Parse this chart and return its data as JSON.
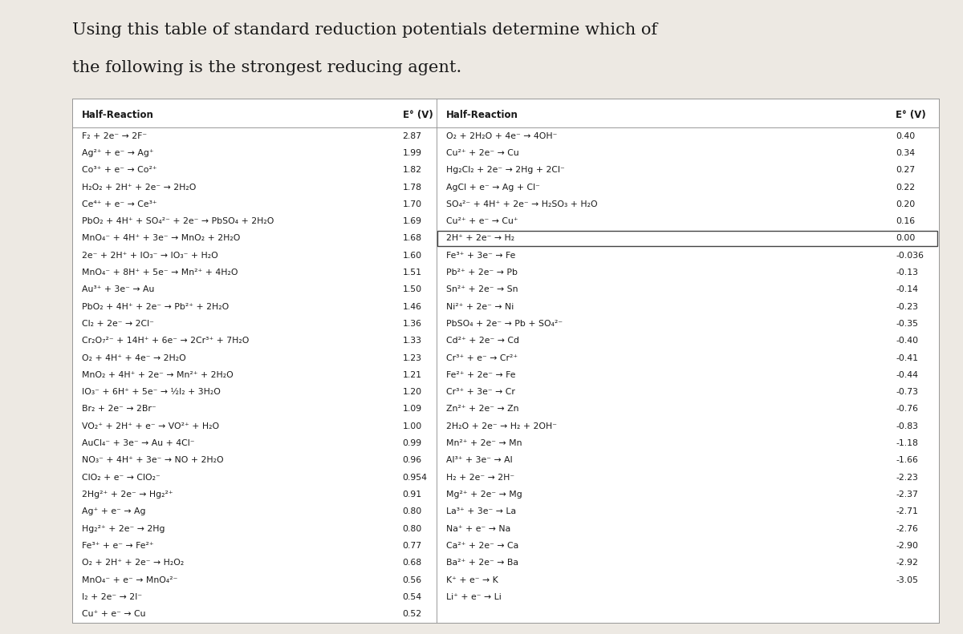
{
  "title_line1": "Using this table of standard reduction potentials determine which of",
  "title_line2": "the following is the strongest reducing agent.",
  "col1_header": "Half-Reaction",
  "col2_header": "E° (V)",
  "col3_header": "Half-Reaction",
  "col4_header": "E° (V)",
  "left_reactions": [
    "F₂ + 2e⁻ → 2F⁻",
    "Ag²⁺ + e⁻ → Ag⁺",
    "Co³⁺ + e⁻ → Co²⁺",
    "H₂O₂ + 2H⁺ + 2e⁻ → 2H₂O",
    "Ce⁴⁺ + e⁻ → Ce³⁺",
    "PbO₂ + 4H⁺ + SO₄²⁻ + 2e⁻ → PbSO₄ + 2H₂O",
    "MnO₄⁻ + 4H⁺ + 3e⁻ → MnO₂ + 2H₂O",
    "2e⁻ + 2H⁺ + IO₃⁻ → IO₃⁻ + H₂O",
    "MnO₄⁻ + 8H⁺ + 5e⁻ → Mn²⁺ + 4H₂O",
    "Au³⁺ + 3e⁻ → Au",
    "PbO₂ + 4H⁺ + 2e⁻ → Pb²⁺ + 2H₂O",
    "Cl₂ + 2e⁻ → 2Cl⁻",
    "Cr₂O₇²⁻ + 14H⁺ + 6e⁻ → 2Cr³⁺ + 7H₂O",
    "O₂ + 4H⁺ + 4e⁻ → 2H₂O",
    "MnO₂ + 4H⁺ + 2e⁻ → Mn²⁺ + 2H₂O",
    "IO₃⁻ + 6H⁺ + 5e⁻ → ½I₂ + 3H₂O",
    "Br₂ + 2e⁻ → 2Br⁻",
    "VO₂⁺ + 2H⁺ + e⁻ → VO²⁺ + H₂O",
    "AuCl₄⁻ + 3e⁻ → Au + 4Cl⁻",
    "NO₃⁻ + 4H⁺ + 3e⁻ → NO + 2H₂O",
    "ClO₂ + e⁻ → ClO₂⁻",
    "2Hg²⁺ + 2e⁻ → Hg₂²⁺",
    "Ag⁺ + e⁻ → Ag",
    "Hg₂²⁺ + 2e⁻ → 2Hg",
    "Fe³⁺ + e⁻ → Fe²⁺",
    "O₂ + 2H⁺ + 2e⁻ → H₂O₂",
    "MnO₄⁻ + e⁻ → MnO₄²⁻",
    "I₂ + 2e⁻ → 2I⁻",
    "Cu⁺ + e⁻ → Cu"
  ],
  "left_potentials": [
    "2.87",
    "1.99",
    "1.82",
    "1.78",
    "1.70",
    "1.69",
    "1.68",
    "1.60",
    "1.51",
    "1.50",
    "1.46",
    "1.36",
    "1.33",
    "1.23",
    "1.21",
    "1.20",
    "1.09",
    "1.00",
    "0.99",
    "0.96",
    "0.954",
    "0.91",
    "0.80",
    "0.80",
    "0.77",
    "0.68",
    "0.56",
    "0.54",
    "0.52"
  ],
  "right_reactions": [
    "O₂ + 2H₂O + 4e⁻ → 4OH⁻",
    "Cu²⁺ + 2e⁻ → Cu",
    "Hg₂Cl₂ + 2e⁻ → 2Hg + 2Cl⁻",
    "AgCl + e⁻ → Ag + Cl⁻",
    "SO₄²⁻ + 4H⁺ + 2e⁻ → H₂SO₃ + H₂O",
    "Cu²⁺ + e⁻ → Cu⁺",
    "2H⁺ + 2e⁻ → H₂",
    "Fe³⁺ + 3e⁻ → Fe",
    "Pb²⁺ + 2e⁻ → Pb",
    "Sn²⁺ + 2e⁻ → Sn",
    "Ni²⁺ + 2e⁻ → Ni",
    "PbSO₄ + 2e⁻ → Pb + SO₄²⁻",
    "Cd²⁺ + 2e⁻ → Cd",
    "Cr³⁺ + e⁻ → Cr²⁺",
    "Fe²⁺ + 2e⁻ → Fe",
    "Cr³⁺ + 3e⁻ → Cr",
    "Zn²⁺ + 2e⁻ → Zn",
    "2H₂O + 2e⁻ → H₂ + 2OH⁻",
    "Mn²⁺ + 2e⁻ → Mn",
    "Al³⁺ + 3e⁻ → Al",
    "H₂ + 2e⁻ → 2H⁻",
    "Mg²⁺ + 2e⁻ → Mg",
    "La³⁺ + 3e⁻ → La",
    "Na⁺ + e⁻ → Na",
    "Ca²⁺ + 2e⁻ → Ca",
    "Ba²⁺ + 2e⁻ → Ba",
    "K⁺ + e⁻ → K",
    "Li⁺ + e⁻ → Li"
  ],
  "right_potentials": [
    "0.40",
    "0.34",
    "0.27",
    "0.22",
    "0.20",
    "0.16",
    "0.00",
    "-0.036",
    "-0.13",
    "-0.14",
    "-0.23",
    "-0.35",
    "-0.40",
    "-0.41",
    "-0.44",
    "-0.73",
    "-0.76",
    "-0.83",
    "-1.18",
    "-1.66",
    "-2.23",
    "-2.37",
    "-2.71",
    "-2.76",
    "-2.90",
    "-2.92",
    "-3.05",
    ""
  ],
  "bg_color": "#ede9e3",
  "text_color": "#1a1a1a",
  "header_color": "#1a1a1a",
  "table_bg": "#ffffff",
  "line_color": "#999999",
  "font_size_title": 15,
  "font_size_header": 8.5,
  "font_size_body": 7.8
}
